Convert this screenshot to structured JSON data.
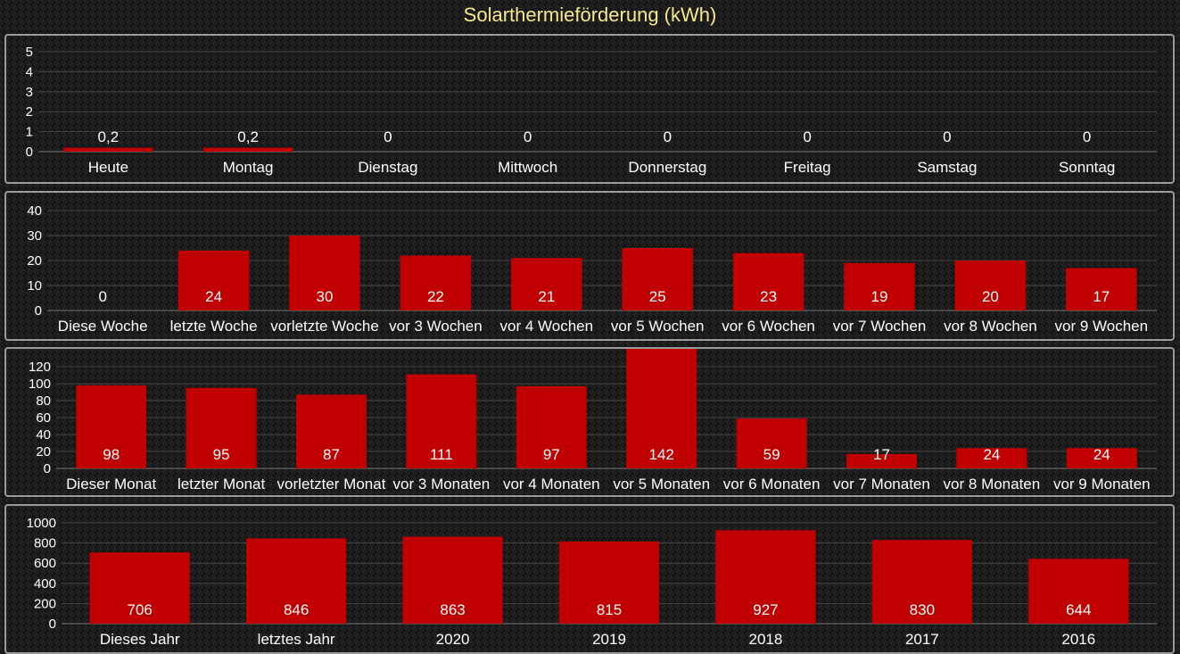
{
  "title": "Solarthermieförderung (kWh)",
  "colors": {
    "bar": "#c00000",
    "grid": "#454545",
    "text": "#ffffff",
    "title": "#f5e98a",
    "panel_border": "#9a9a9a"
  },
  "chart_data": [
    {
      "type": "bar",
      "title": "",
      "categories": [
        "Heute",
        "Montag",
        "Dienstag",
        "Mittwoch",
        "Donnerstag",
        "Freitag",
        "Samstag",
        "Sonntag"
      ],
      "values": [
        0.2,
        0.2,
        0,
        0,
        0,
        0,
        0,
        0
      ],
      "value_labels": [
        "0,2",
        "0,2",
        "0",
        "0",
        "0",
        "0",
        "0",
        "0"
      ],
      "ylim": [
        0,
        5
      ],
      "yticks": [
        0,
        1,
        2,
        3,
        4,
        5
      ],
      "grid": true
    },
    {
      "type": "bar",
      "title": "",
      "categories": [
        "Diese Woche",
        "letzte Woche",
        "vorletzte Woche",
        "vor 3 Wochen",
        "vor 4 Wochen",
        "vor 5 Wochen",
        "vor 6 Wochen",
        "vor 7 Wochen",
        "vor 8 Wochen",
        "vor 9 Wochen"
      ],
      "values": [
        0,
        24,
        30,
        22,
        21,
        25,
        23,
        19,
        20,
        17
      ],
      "value_labels": [
        "0",
        "24",
        "30",
        "22",
        "21",
        "25",
        "23",
        "19",
        "20",
        "17"
      ],
      "ylim": [
        0,
        40
      ],
      "yticks": [
        0,
        10,
        20,
        30,
        40
      ],
      "grid": true
    },
    {
      "type": "bar",
      "title": "",
      "categories": [
        "Dieser Monat",
        "letzter Monat",
        "vorletzter Monat",
        "vor 3 Monaten",
        "vor 4 Monaten",
        "vor 5 Monaten",
        "vor 6 Monaten",
        "vor 7 Monaten",
        "vor 8 Monaten",
        "vor 9 Monaten"
      ],
      "values": [
        98,
        95,
        87,
        111,
        97,
        142,
        59,
        17,
        24,
        24
      ],
      "value_labels": [
        "98",
        "95",
        "87",
        "111",
        "97",
        "142",
        "59",
        "17",
        "24",
        "24"
      ],
      "ylim": [
        0,
        120
      ],
      "yticks": [
        0,
        20,
        40,
        60,
        80,
        100,
        120
      ],
      "grid": true
    },
    {
      "type": "bar",
      "title": "",
      "categories": [
        "Dieses Jahr",
        "letztes Jahr",
        "2020",
        "2019",
        "2018",
        "2017",
        "2016"
      ],
      "values": [
        706,
        846,
        863,
        815,
        927,
        830,
        644
      ],
      "value_labels": [
        "706",
        "846",
        "863",
        "815",
        "927",
        "830",
        "644"
      ],
      "ylim": [
        0,
        1000
      ],
      "yticks": [
        0,
        200,
        400,
        600,
        800,
        1000
      ],
      "grid": true
    }
  ]
}
